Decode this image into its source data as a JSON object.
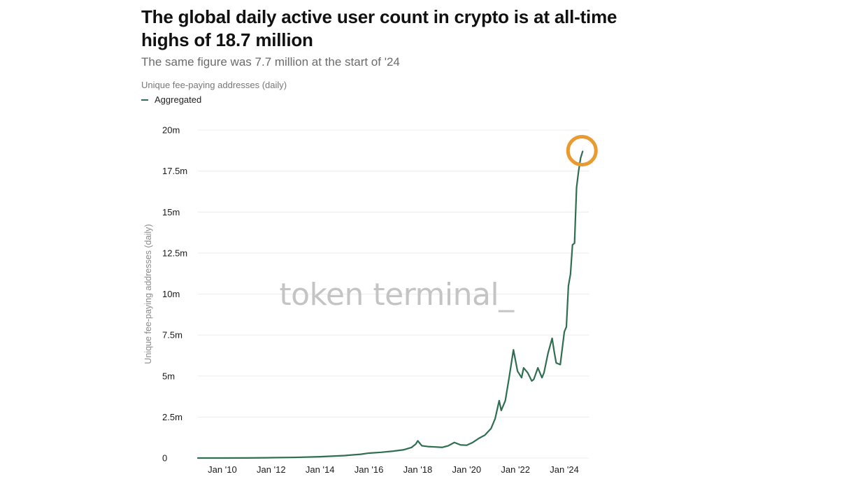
{
  "header": {
    "title": "The global daily active user count in crypto is at all-time highs of 18.7 million",
    "subtitle": "The same figure was 7.7 million at the start of '24"
  },
  "metric_label": "Unique fee-paying addresses (daily)",
  "legend": {
    "label": "Aggregated",
    "color": "#2f6e50"
  },
  "watermark": "token terminal_",
  "colors": {
    "line": "#2f6e50",
    "highlight": "#e99a30",
    "grid": "#ececec"
  },
  "chart_data": {
    "type": "line",
    "title": "The global daily active user count in crypto is at all-time highs of 18.7 million",
    "subtitle": "The same figure was 7.7 million at the start of '24",
    "ylabel": "Unique fee-paying addresses (daily)",
    "xlabel": "",
    "ylim": [
      0,
      20000000
    ],
    "xlim": [
      "2009-01",
      "2025-01"
    ],
    "grid": true,
    "legend_position": "top-left",
    "y_ticks": [
      {
        "value": 0,
        "label": "0"
      },
      {
        "value": 2500000,
        "label": "2.5m"
      },
      {
        "value": 5000000,
        "label": "5m"
      },
      {
        "value": 7500000,
        "label": "7.5m"
      },
      {
        "value": 10000000,
        "label": "10m"
      },
      {
        "value": 12500000,
        "label": "12.5m"
      },
      {
        "value": 15000000,
        "label": "15m"
      },
      {
        "value": 17500000,
        "label": "17.5m"
      },
      {
        "value": 20000000,
        "label": "20m"
      }
    ],
    "x_ticks": [
      {
        "value": "2010-01",
        "label": "Jan '10"
      },
      {
        "value": "2012-01",
        "label": "Jan '12"
      },
      {
        "value": "2014-01",
        "label": "Jan '14"
      },
      {
        "value": "2016-01",
        "label": "Jan '16"
      },
      {
        "value": "2018-01",
        "label": "Jan '18"
      },
      {
        "value": "2020-01",
        "label": "Jan '20"
      },
      {
        "value": "2022-01",
        "label": "Jan '22"
      },
      {
        "value": "2024-01",
        "label": "Jan '24"
      }
    ],
    "series": [
      {
        "name": "Aggregated",
        "color": "#2f6e50",
        "points": [
          [
            "2009-01",
            0
          ],
          [
            "2010-01",
            0
          ],
          [
            "2011-01",
            5000
          ],
          [
            "2012-01",
            20000
          ],
          [
            "2013-01",
            40000
          ],
          [
            "2014-01",
            80000
          ],
          [
            "2015-01",
            150000
          ],
          [
            "2015-09",
            230000
          ],
          [
            "2016-01",
            300000
          ],
          [
            "2016-07",
            350000
          ],
          [
            "2017-01",
            420000
          ],
          [
            "2017-06",
            500000
          ],
          [
            "2017-10",
            650000
          ],
          [
            "2017-12",
            850000
          ],
          [
            "2018-01",
            1050000
          ],
          [
            "2018-03",
            750000
          ],
          [
            "2018-06",
            700000
          ],
          [
            "2018-09",
            680000
          ],
          [
            "2019-01",
            650000
          ],
          [
            "2019-04",
            750000
          ],
          [
            "2019-07",
            950000
          ],
          [
            "2019-10",
            800000
          ],
          [
            "2020-01",
            780000
          ],
          [
            "2020-04",
            950000
          ],
          [
            "2020-07",
            1200000
          ],
          [
            "2020-10",
            1400000
          ],
          [
            "2021-01",
            1800000
          ],
          [
            "2021-03",
            2400000
          ],
          [
            "2021-05",
            3500000
          ],
          [
            "2021-06",
            2900000
          ],
          [
            "2021-08",
            3500000
          ],
          [
            "2021-10",
            5000000
          ],
          [
            "2021-12",
            6600000
          ],
          [
            "2022-02",
            5300000
          ],
          [
            "2022-04",
            4900000
          ],
          [
            "2022-05",
            5500000
          ],
          [
            "2022-07",
            5200000
          ],
          [
            "2022-09",
            4700000
          ],
          [
            "2022-10",
            4800000
          ],
          [
            "2022-12",
            5500000
          ],
          [
            "2023-02",
            4900000
          ],
          [
            "2023-03",
            5200000
          ],
          [
            "2023-05",
            6400000
          ],
          [
            "2023-07",
            7300000
          ],
          [
            "2023-08",
            6500000
          ],
          [
            "2023-09",
            5800000
          ],
          [
            "2023-11",
            5700000
          ],
          [
            "2024-01",
            7700000
          ],
          [
            "2024-02",
            8000000
          ],
          [
            "2024-03",
            10500000
          ],
          [
            "2024-04",
            11200000
          ],
          [
            "2024-05",
            13000000
          ],
          [
            "2024-06",
            13100000
          ],
          [
            "2024-07",
            16500000
          ],
          [
            "2024-08",
            17500000
          ],
          [
            "2024-09",
            18300000
          ],
          [
            "2024-10",
            18700000
          ]
        ]
      }
    ],
    "annotations": [
      {
        "type": "circle",
        "at": [
          "2024-10",
          18700000
        ],
        "color": "#e99a30"
      }
    ]
  }
}
